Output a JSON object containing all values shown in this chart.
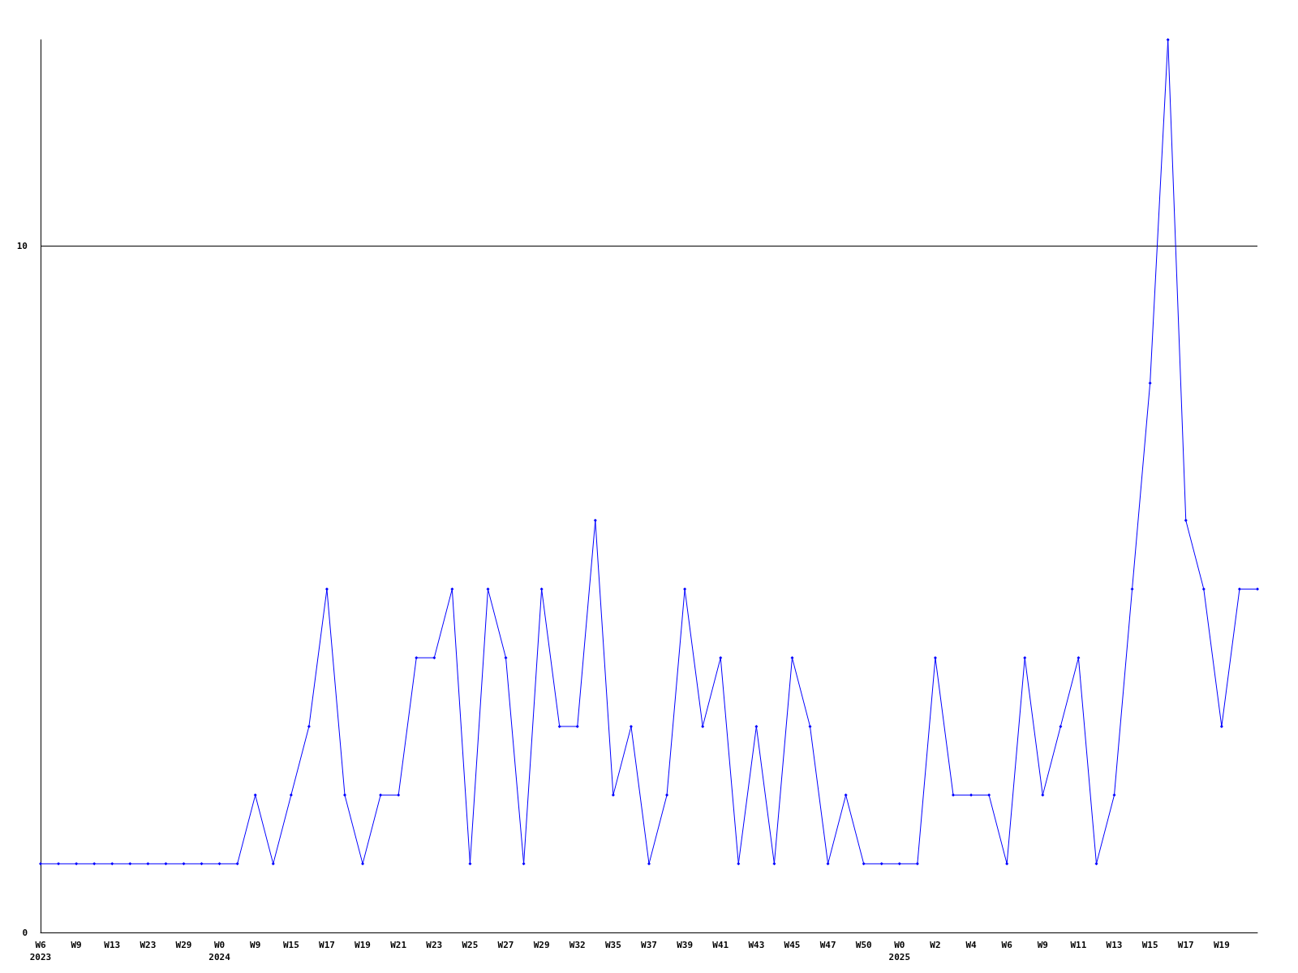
{
  "chart_data": {
    "type": "line",
    "categories": [
      "W6\n2023",
      null,
      "W9",
      null,
      "W13",
      null,
      "W23",
      null,
      "W29",
      null,
      "W0\n2024",
      null,
      "W9",
      null,
      "W15",
      null,
      "W17",
      null,
      "W19",
      null,
      "W21",
      null,
      "W23",
      null,
      "W25",
      null,
      "W27",
      null,
      "W29",
      null,
      "W32",
      null,
      "W35",
      null,
      "W37",
      null,
      "W39",
      null,
      "W41",
      null,
      "W43",
      null,
      "W45",
      null,
      "W47",
      null,
      "W50",
      null,
      "W0\n2025",
      null,
      "W2",
      null,
      "W4",
      null,
      "W6",
      null,
      "W9",
      null,
      "W11",
      null,
      "W13",
      null,
      "W15",
      null,
      "W17",
      null,
      "W19",
      null,
      null
    ],
    "series": [
      {
        "color": "#0000ff",
        "values": [
          1,
          1,
          1,
          1,
          1,
          1,
          1,
          1,
          1,
          1,
          1,
          1,
          2,
          1,
          2,
          3,
          5,
          2,
          1,
          2,
          2,
          4,
          4,
          5,
          1,
          5,
          4,
          1,
          5,
          3,
          3,
          6,
          2,
          3,
          1,
          2,
          5,
          3,
          4,
          1,
          3,
          1,
          4,
          3,
          1,
          2,
          1,
          1,
          1,
          1,
          4,
          2,
          2,
          2,
          1,
          4,
          2,
          3,
          4,
          1,
          2,
          5,
          8,
          13,
          6,
          5,
          3,
          5,
          5
        ]
      }
    ],
    "ylim": [
      0,
      13
    ],
    "yticks": [
      0,
      10
    ],
    "grid": "y",
    "marker": "diamond",
    "line_style": "solid"
  }
}
